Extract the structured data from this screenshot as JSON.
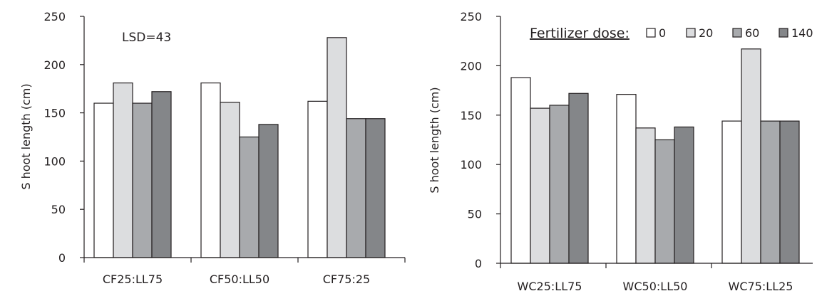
{
  "legend": {
    "title": "Fertilizer dose:",
    "entries": [
      "0",
      "20",
      "60",
      "140"
    ]
  },
  "chart_data": [
    {
      "type": "bar",
      "categories": [
        "CF25:LL75",
        "CF50:LL50",
        "CF75:25"
      ],
      "series": [
        {
          "name": "0",
          "values": [
            160,
            181,
            162
          ]
        },
        {
          "name": "20",
          "values": [
            181,
            161,
            228
          ]
        },
        {
          "name": "60",
          "values": [
            160,
            125,
            144
          ]
        },
        {
          "name": "140",
          "values": [
            172,
            138,
            144
          ]
        }
      ],
      "ylabel": "S hoot length (cm)",
      "ylim": [
        0,
        250
      ],
      "yticks": [
        0,
        50,
        100,
        150,
        200,
        250
      ],
      "annotation": "LSD=43",
      "grid": false
    },
    {
      "type": "bar",
      "categories": [
        "WC25:LL75",
        "WC50:LL50",
        "WC75:LL25"
      ],
      "series": [
        {
          "name": "0",
          "values": [
            188,
            171,
            144
          ]
        },
        {
          "name": "20",
          "values": [
            157,
            137,
            217
          ]
        },
        {
          "name": "60",
          "values": [
            160,
            125,
            144
          ]
        },
        {
          "name": "140",
          "values": [
            172,
            138,
            144
          ]
        }
      ],
      "ylabel": "S hoot length (cm)",
      "ylim": [
        0,
        250
      ],
      "yticks": [
        0,
        50,
        100,
        150,
        200,
        250
      ],
      "grid": false,
      "legend_position": "top"
    }
  ],
  "colors": {
    "series": [
      "#ffffff",
      "#dcdddf",
      "#a8aaad",
      "#848689"
    ],
    "ink": "#231f20"
  }
}
